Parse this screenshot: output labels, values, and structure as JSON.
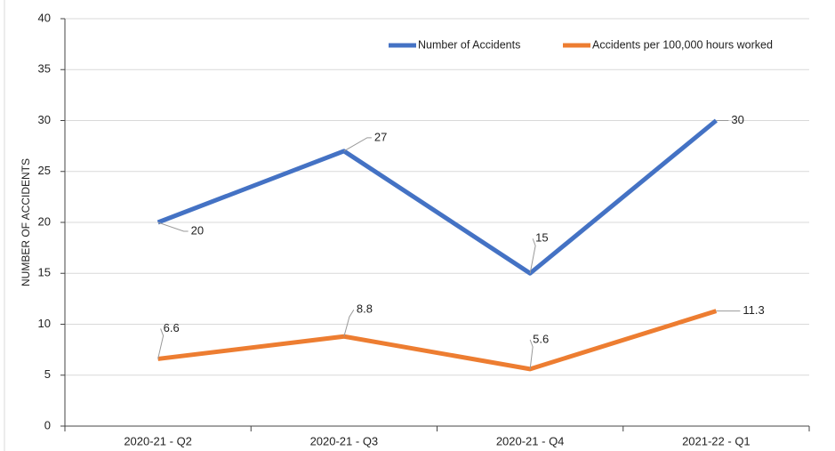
{
  "chart_data": {
    "type": "line",
    "y_label": "NUMBER OF ACCIDENTS",
    "categories": [
      "2020-21 - Q2",
      "2020-21 - Q3",
      "2020-21 - Q4",
      "2021-22 - Q1"
    ],
    "series": [
      {
        "name": "Number of Accidents",
        "color": "#4472c4",
        "values": [
          20,
          27,
          15,
          30
        ]
      },
      {
        "name": "Accidents per 100,000 hours worked",
        "color": "#ed7d31",
        "values": [
          6.6,
          8.8,
          5.6,
          11.3
        ]
      }
    ],
    "ylim": [
      0,
      40
    ],
    "yticks": [
      0,
      5,
      10,
      15,
      20,
      25,
      30,
      35,
      40
    ],
    "grid": true,
    "legend": "top-right"
  }
}
